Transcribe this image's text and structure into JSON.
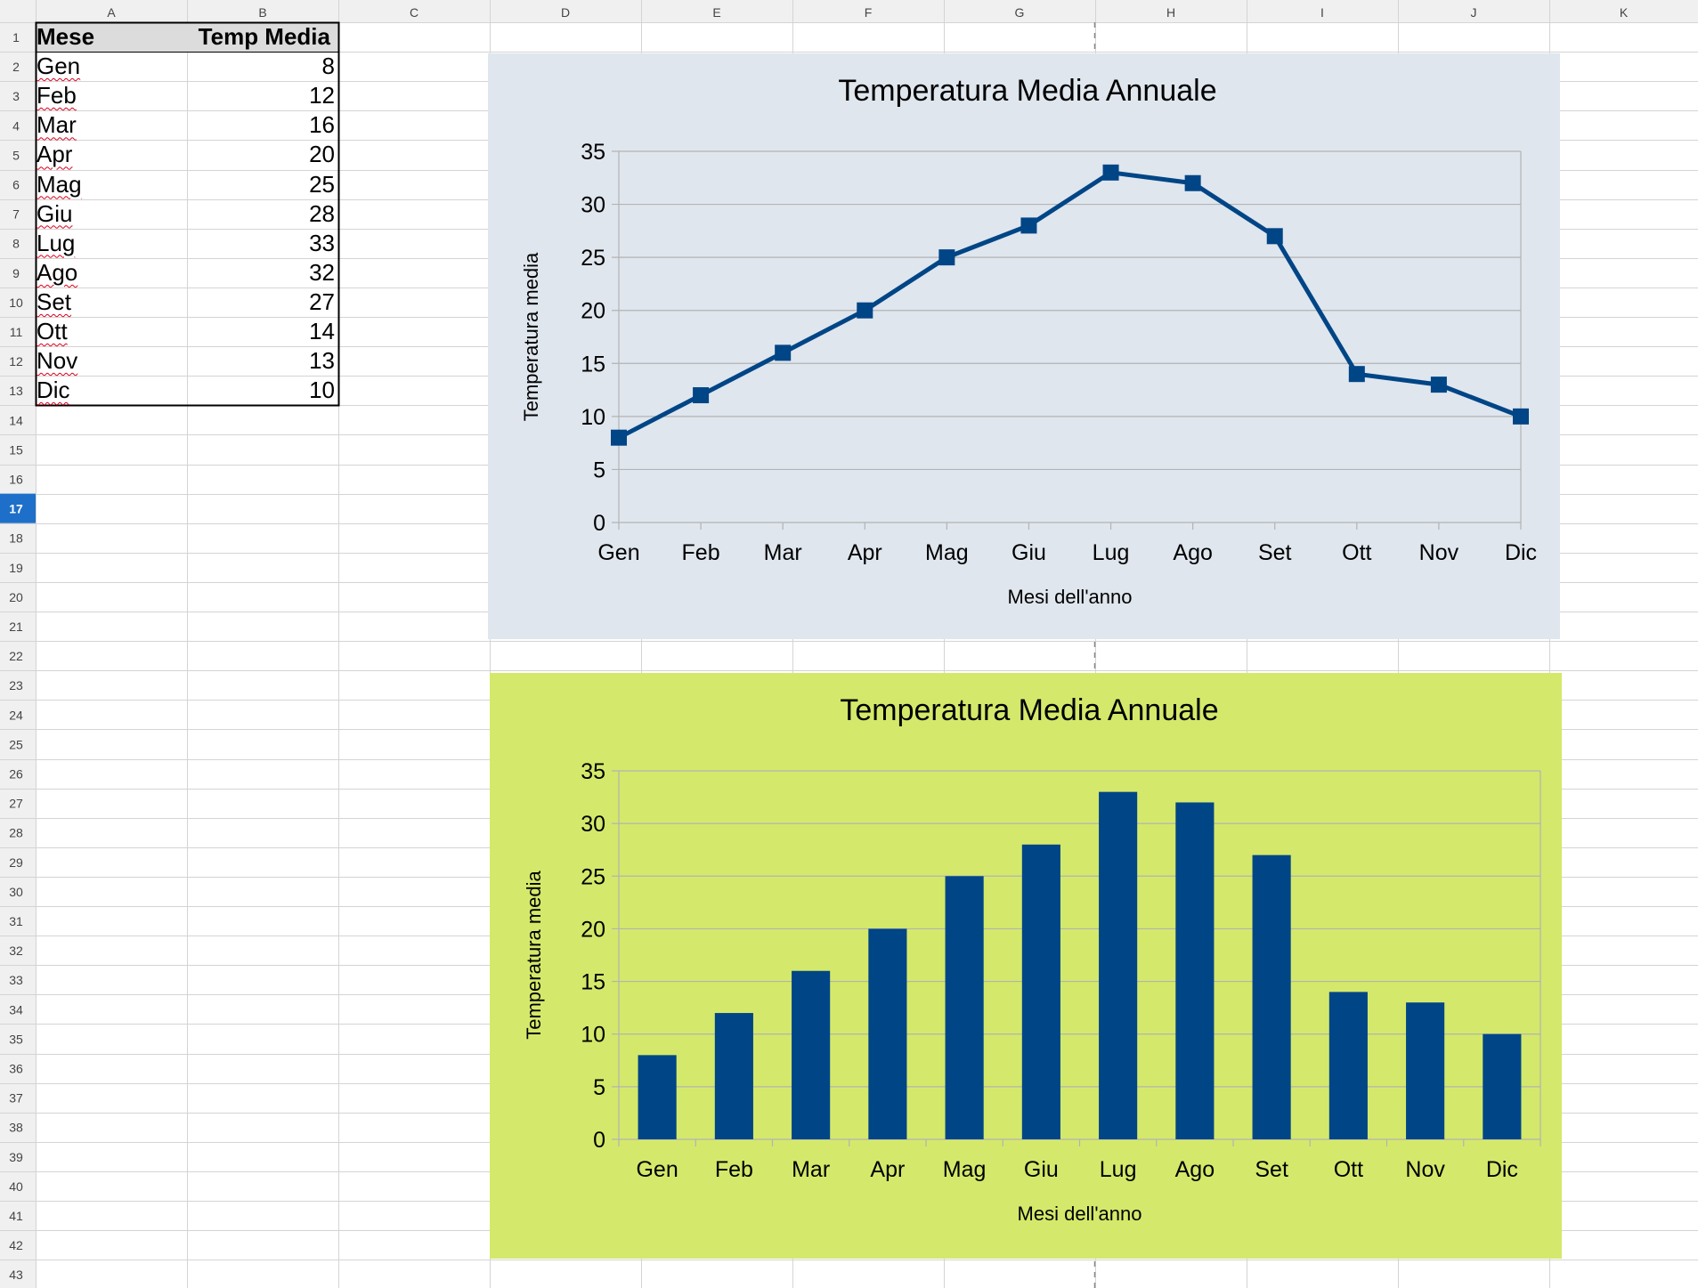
{
  "spreadsheet": {
    "columns": [
      "A",
      "B",
      "C",
      "D",
      "E",
      "F",
      "G",
      "H",
      "I",
      "J",
      "K"
    ],
    "selected_row": 17,
    "headers": {
      "mese": "Mese",
      "temp": "Temp Media"
    },
    "rows": [
      {
        "mese": "Gen",
        "temp": "8"
      },
      {
        "mese": "Feb",
        "temp": "12"
      },
      {
        "mese": "Mar",
        "temp": "16"
      },
      {
        "mese": "Apr",
        "temp": "20"
      },
      {
        "mese": "Mag",
        "temp": "25"
      },
      {
        "mese": "Giu",
        "temp": "28"
      },
      {
        "mese": "Lug",
        "temp": "33"
      },
      {
        "mese": "Ago",
        "temp": "32"
      },
      {
        "mese": "Set",
        "temp": "27"
      },
      {
        "mese": "Ott",
        "temp": "14"
      },
      {
        "mese": "Nov",
        "temp": "13"
      },
      {
        "mese": "Dic",
        "temp": "10"
      }
    ],
    "colors": {
      "header_bg": "#dcdcdc",
      "grid_line": "#d4d4d4",
      "selected_row_bg": "#1e6fc9",
      "header_text": "#444444"
    }
  },
  "chart_data": [
    {
      "type": "line",
      "title": "Temperatura Media Annuale",
      "xlabel": "Mesi dell'anno",
      "ylabel": "Temperatura media",
      "categories": [
        "Gen",
        "Feb",
        "Mar",
        "Apr",
        "Mag",
        "Giu",
        "Lug",
        "Ago",
        "Set",
        "Ott",
        "Nov",
        "Dic"
      ],
      "values": [
        8,
        12,
        16,
        20,
        25,
        28,
        33,
        32,
        27,
        14,
        13,
        10
      ],
      "ylim": [
        0,
        35
      ],
      "yticks": [
        0,
        5,
        10,
        15,
        20,
        25,
        30,
        35
      ],
      "grid": true,
      "colors": {
        "background": "#dfe6ee",
        "series": "#004586",
        "gridline": "#b3b3b3"
      }
    },
    {
      "type": "bar",
      "title": "Temperatura Media Annuale",
      "xlabel": "Mesi dell'anno",
      "ylabel": "Temperatura media",
      "categories": [
        "Gen",
        "Feb",
        "Mar",
        "Apr",
        "Mag",
        "Giu",
        "Lug",
        "Ago",
        "Set",
        "Ott",
        "Nov",
        "Dic"
      ],
      "values": [
        8,
        12,
        16,
        20,
        25,
        28,
        33,
        32,
        27,
        14,
        13,
        10
      ],
      "ylim": [
        0,
        35
      ],
      "yticks": [
        0,
        5,
        10,
        15,
        20,
        25,
        30,
        35
      ],
      "grid": true,
      "colors": {
        "background": "#d4e96b",
        "series": "#004586",
        "gridline": "#b3b3b3"
      }
    }
  ]
}
